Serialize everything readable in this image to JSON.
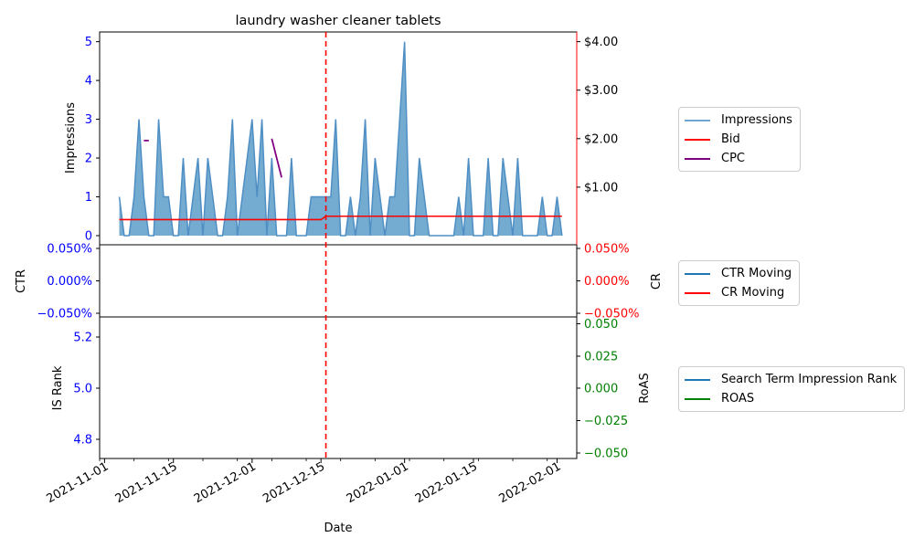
{
  "chart_data": [
    {
      "type": "area",
      "title": "laundry washer cleaner tablets",
      "ylabel": "Impressions",
      "ylim": [
        0,
        5.25
      ],
      "yticks": [
        "0",
        "1",
        "2",
        "3",
        "4",
        "5"
      ],
      "y2ticks": [
        "$1.00",
        "$2.00",
        "$3.00",
        "$4.00"
      ],
      "y2lim": [
        0,
        4.2
      ],
      "xlabel": "",
      "legend": [
        "Impressions",
        "Bid",
        "CPC"
      ],
      "legend_position": "right",
      "colors": {
        "impressions": "#1f77b4",
        "bid": "#ff0000",
        "cpc": "#800080",
        "left_axis": "#0000ff",
        "right_axis": "#ff0000"
      },
      "series": [
        {
          "name": "Impressions",
          "x": [
            "2021-11-04",
            "2021-11-05",
            "2021-11-06",
            "2021-11-07",
            "2021-11-08",
            "2021-11-09",
            "2021-11-10",
            "2021-11-11",
            "2021-11-12",
            "2021-11-13",
            "2021-11-14",
            "2021-11-15",
            "2021-11-16",
            "2021-11-17",
            "2021-11-18",
            "2021-11-19",
            "2021-11-20",
            "2021-11-21",
            "2021-11-22",
            "2021-11-23",
            "2021-11-24",
            "2021-11-25",
            "2021-11-26",
            "2021-11-27",
            "2021-11-28",
            "2021-11-29",
            "2021-11-30",
            "2021-12-01",
            "2021-12-02",
            "2021-12-03",
            "2021-12-04",
            "2021-12-05",
            "2021-12-06",
            "2021-12-07",
            "2021-12-08",
            "2021-12-09",
            "2021-12-10",
            "2021-12-11",
            "2021-12-12",
            "2021-12-13",
            "2021-12-14",
            "2021-12-15",
            "2021-12-16",
            "2021-12-17",
            "2021-12-18",
            "2021-12-19",
            "2021-12-20",
            "2021-12-21",
            "2021-12-22",
            "2021-12-23",
            "2021-12-24",
            "2021-12-25",
            "2021-12-26",
            "2021-12-27",
            "2021-12-28",
            "2021-12-29",
            "2021-12-30",
            "2021-12-31",
            "2022-01-01",
            "2022-01-02",
            "2022-01-03",
            "2022-01-04",
            "2022-01-05",
            "2022-01-06",
            "2022-01-07",
            "2022-01-08",
            "2022-01-09",
            "2022-01-10",
            "2022-01-11",
            "2022-01-12",
            "2022-01-13",
            "2022-01-14",
            "2022-01-15",
            "2022-01-16",
            "2022-01-17",
            "2022-01-18",
            "2022-01-19",
            "2022-01-20",
            "2022-01-21",
            "2022-01-22",
            "2022-01-23",
            "2022-01-24",
            "2022-01-25",
            "2022-01-26",
            "2022-01-27",
            "2022-01-28",
            "2022-01-29",
            "2022-01-30",
            "2022-01-31",
            "2022-02-01",
            "2022-02-02"
          ],
          "values": [
            1,
            0,
            0,
            1,
            3,
            1,
            0,
            0,
            3,
            1,
            1,
            0,
            0,
            2,
            0,
            1,
            2,
            0,
            2,
            1,
            0,
            0,
            1,
            3,
            0,
            1,
            2,
            3,
            1,
            3,
            0,
            2,
            0,
            0,
            0,
            2,
            0,
            0,
            0,
            1,
            1,
            1,
            1,
            1,
            3,
            0,
            0,
            1,
            0,
            1,
            3,
            0,
            2,
            1,
            0,
            1,
            1,
            3,
            5,
            0,
            0,
            2,
            1,
            0,
            0,
            0,
            0,
            0,
            0,
            1,
            0,
            2,
            0,
            0,
            0,
            2,
            0,
            0,
            2,
            1,
            0,
            2,
            0,
            0,
            0,
            0,
            1,
            0,
            0,
            1,
            0
          ]
        },
        {
          "name": "Bid",
          "axis": "right",
          "x": [
            "2021-11-04",
            "2021-12-15",
            "2021-12-16",
            "2022-02-02"
          ],
          "values": [
            0.33,
            0.33,
            0.4,
            0.4
          ]
        },
        {
          "name": "CPC",
          "axis": "right",
          "segments": [
            {
              "x": [
                "2021-11-09",
                "2021-11-10"
              ],
              "values": [
                1.96,
                1.96
              ]
            },
            {
              "x": [
                "2021-12-05",
                "2021-12-07"
              ],
              "values": [
                2.0,
                1.2
              ]
            }
          ]
        }
      ],
      "vline": {
        "x": "2021-12-16",
        "color": "#ff0000",
        "style": "dashed"
      }
    },
    {
      "type": "line",
      "ylabel": "CTR",
      "y2label": "CR",
      "yticks": [
        "0.050%",
        "0.000%",
        "−0.050%"
      ],
      "y2ticks": [
        "0.050%",
        "0.000%",
        "−0.050%"
      ],
      "legend": [
        "CTR Moving",
        "CR Moving"
      ],
      "colors": {
        "ctr": "#1f77b4",
        "cr": "#ff0000",
        "left_axis": "#0000ff",
        "right_axis": "#ff0000"
      },
      "series": []
    },
    {
      "type": "line",
      "ylabel": "IS Rank",
      "y2label": "RoAS",
      "yticks": [
        "5.2",
        "5.0",
        "4.8"
      ],
      "y2ticks": [
        "0.050",
        "0.025",
        "0.000",
        "−0.025",
        "−0.050"
      ],
      "legend": [
        "Search Term Impression Rank",
        "ROAS"
      ],
      "colors": {
        "rank": "#1f77b4",
        "roas": "#008000",
        "left_axis": "#0000ff",
        "right_axis": "#008000"
      },
      "series": []
    }
  ],
  "x_axis": {
    "label": "Date",
    "ticks": [
      "2021-11-01",
      "2021-11-15",
      "2021-12-01",
      "2021-12-15",
      "2022-01-01",
      "2022-01-15",
      "2022-02-01"
    ],
    "range": [
      "2021-10-31",
      "2022-02-05"
    ]
  }
}
